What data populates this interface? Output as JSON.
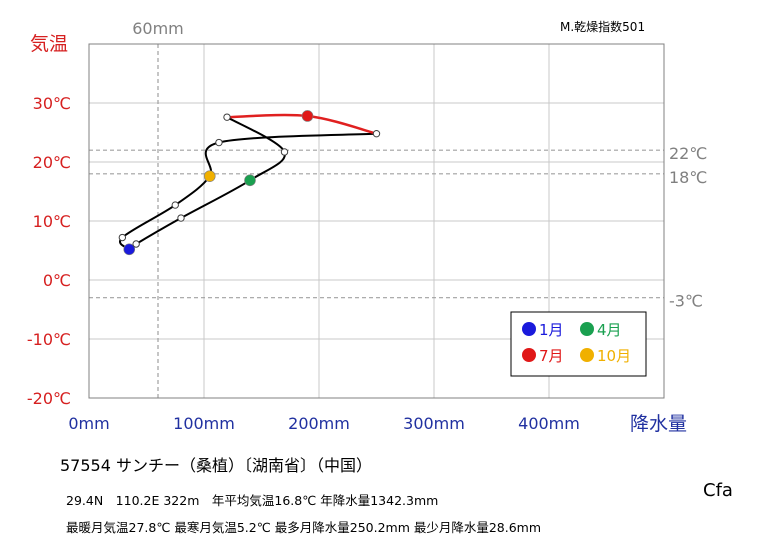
{
  "chart_data": {
    "type": "line",
    "title": "57554 サンチー（桑植）〔湖南省〕（中国）",
    "xlabel": "降水量",
    "ylabel": "気温",
    "xlim": [
      0,
      500
    ],
    "ylim": [
      -20,
      40
    ],
    "x_ticks": [
      "0mm",
      "100mm",
      "200mm",
      "300mm",
      "400mm"
    ],
    "y_ticks": [
      "-20℃",
      "-10℃",
      "0℃",
      "10℃",
      "20℃",
      "30℃"
    ],
    "grid": true,
    "months": [
      1,
      2,
      3,
      4,
      5,
      6,
      7,
      8,
      9,
      10,
      11,
      12,
      1
    ],
    "precip_mm": [
      35,
      41,
      80,
      140,
      170,
      120,
      190,
      250,
      113,
      105,
      75,
      29,
      35
    ],
    "temp_c": [
      5.2,
      6.1,
      10.5,
      16.9,
      21.7,
      27.6,
      27.8,
      24.8,
      23.3,
      17.6,
      12.7,
      7.2,
      5.2
    ],
    "summer_segment": {
      "from_month": 6,
      "to_month": 8,
      "color": "#e02020"
    },
    "reference_lines": {
      "precip": {
        "value": 60,
        "label": "60mm"
      },
      "temp": [
        {
          "value": 22,
          "label": "22℃"
        },
        {
          "value": 18,
          "label": "18℃"
        },
        {
          "value": -3,
          "label": "-3℃"
        }
      ]
    },
    "highlight_markers": [
      {
        "month": 1,
        "label": "1月",
        "color": "#1a1adc"
      },
      {
        "month": 4,
        "label": "4月",
        "color": "#1aa050"
      },
      {
        "month": 7,
        "label": "7月",
        "color": "#e01818"
      },
      {
        "month": 10,
        "label": "10月",
        "color": "#f0b000"
      }
    ],
    "legend_text_colors": [
      "#1a1adc",
      "#1aa050",
      "#e01818",
      "#f0b000"
    ],
    "legend_position": "bottom-right"
  },
  "aridity_label": "M.乾燥指数501",
  "koppen": "Cfa",
  "info_line1": "29.4N　110.2E 322m　年平均気温16.8℃ 年降水量1342.3mm",
  "info_line2": "最暖月気温27.8℃ 最寒月気温5.2℃ 最多月降水量250.2mm 最少月降水量28.6mm",
  "colors": {
    "axis_text_temp": "#d62020",
    "axis_text_precip": "#2030a0",
    "reference": "#808080",
    "line": "#000000"
  }
}
